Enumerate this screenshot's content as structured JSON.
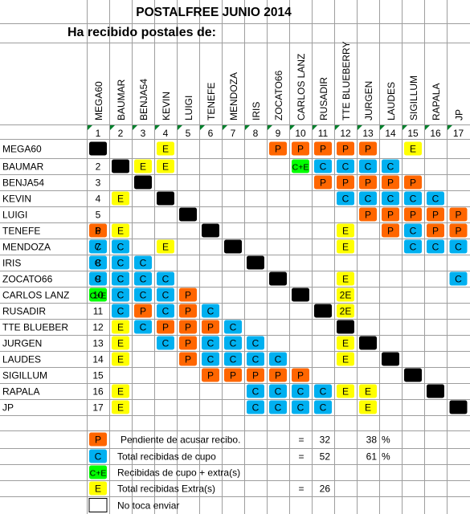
{
  "title": "POSTALFREE JUNIO 2014",
  "subtitle": "Ha recibido postales de:",
  "colors": {
    "P": "#ff6600",
    "C": "#00b0f0",
    "CE": "#00ff00",
    "E": "#ffff00",
    "block": "#000000",
    "grid": "#9e9e9e",
    "mark": "#00802b"
  },
  "participants": [
    "MEGA60",
    "BAUMAR",
    "BENJA54",
    "KEVIN",
    "LUIGI",
    "TENEFE",
    "MENDOZA",
    "IRIS",
    "ZOCATO66",
    "CARLOS LANZ",
    "RUSADIR",
    "TTE BLUEBERRY",
    "JURGEN",
    "LAUDES",
    "SIGILLUM",
    "RAPALA",
    "JP"
  ],
  "row_names": [
    "MEGA60",
    "BAUMAR",
    "BENJA54",
    "KEVIN",
    "LUIGI",
    "TENEFE",
    "MENDOZA",
    "IRIS",
    "ZOCATO66",
    "CARLOS LANZ",
    "RUSADIR",
    "TTE BLUEBER",
    "JURGEN",
    "LAUDES",
    "SIGILLUM",
    "RAPALA",
    "JP"
  ],
  "matrix": [
    [
      "X",
      "",
      "",
      "E",
      "",
      "",
      "",
      "",
      "P",
      "P",
      "P",
      "P",
      "P",
      "",
      "E",
      "",
      ""
    ],
    [
      "",
      "X",
      "E",
      "E",
      "",
      "",
      "",
      "",
      "",
      "C+E",
      "C",
      "C",
      "C",
      "C",
      "",
      "",
      ""
    ],
    [
      "",
      "",
      "X",
      "",
      "",
      "",
      "",
      "",
      "",
      "",
      "P",
      "P",
      "P",
      "P",
      "P",
      "",
      ""
    ],
    [
      "",
      "E",
      "",
      "X",
      "",
      "",
      "",
      "",
      "",
      "",
      "",
      "C",
      "C",
      "C",
      "C",
      "C",
      ""
    ],
    [
      "",
      "",
      "",
      "",
      "X",
      "",
      "",
      "",
      "",
      "",
      "",
      "",
      "P",
      "P",
      "P",
      "P",
      "P"
    ],
    [
      "P",
      "E",
      "",
      "",
      "",
      "X",
      "",
      "",
      "",
      "",
      "",
      "E",
      "",
      "P",
      "C",
      "P",
      "P"
    ],
    [
      "C",
      "C",
      "",
      "E",
      "",
      "",
      "X",
      "",
      "",
      "",
      "",
      "E",
      "",
      "",
      "C",
      "C",
      "C"
    ],
    [
      "C",
      "C",
      "C",
      "",
      "",
      "",
      "",
      "X",
      "",
      "",
      "",
      "",
      "",
      "",
      "",
      "",
      ""
    ],
    [
      "C",
      "C",
      "C",
      "C",
      "",
      "",
      "",
      "",
      "X",
      "",
      "",
      "E",
      "",
      "",
      "",
      "",
      "C"
    ],
    [
      "C+E",
      "C",
      "C",
      "C",
      "P",
      "",
      "",
      "",
      "",
      "X",
      "",
      "2E",
      "",
      "",
      "",
      "",
      ""
    ],
    [
      "",
      "C",
      "P",
      "C",
      "P",
      "C",
      "",
      "",
      "",
      "",
      "X",
      "2E",
      "",
      "",
      "",
      "",
      ""
    ],
    [
      "",
      "E",
      "C",
      "P",
      "P",
      "P",
      "C",
      "",
      "",
      "",
      "",
      "X",
      "",
      "",
      "",
      "",
      ""
    ],
    [
      "",
      "E",
      "",
      "C",
      "P",
      "C",
      "C",
      "C",
      "",
      "",
      "",
      "E",
      "X",
      "",
      "",
      "",
      ""
    ],
    [
      "",
      "E",
      "",
      "",
      "P",
      "C",
      "C",
      "C",
      "C",
      "",
      "",
      "E",
      "",
      "X",
      "",
      "",
      ""
    ],
    [
      "",
      "",
      "",
      "",
      "",
      "P",
      "P",
      "P",
      "P",
      "P",
      "",
      "",
      "",
      "",
      "X",
      "",
      ""
    ],
    [
      "",
      "E",
      "",
      "",
      "",
      "",
      "",
      "C",
      "C",
      "C",
      "C",
      "E",
      "E",
      "",
      "",
      "X",
      ""
    ],
    [
      "",
      "E",
      "",
      "",
      "",
      "",
      "",
      "C",
      "C",
      "C",
      "C",
      "",
      "E",
      "",
      "",
      "",
      "X"
    ]
  ],
  "legend": [
    {
      "code": "P",
      "text": "Pendiente de acusar recibo.",
      "eq": "=",
      "count": "32",
      "pct": "38",
      "pct_unit": "%"
    },
    {
      "code": "C",
      "text": "Total recibidas de cupo",
      "eq": "=",
      "count": "52",
      "pct": "61",
      "pct_unit": "%"
    },
    {
      "code": "C+E",
      "text": "Recibidas de cupo + extra(s)",
      "eq": "",
      "count": "",
      "pct": "",
      "pct_unit": ""
    },
    {
      "code": "E",
      "text": "Total recibidas Extra(s)",
      "eq": "=",
      "count": "26",
      "pct": "",
      "pct_unit": ""
    },
    {
      "code": "",
      "text": "No toca enviar",
      "eq": "",
      "count": "",
      "pct": "",
      "pct_unit": ""
    }
  ]
}
